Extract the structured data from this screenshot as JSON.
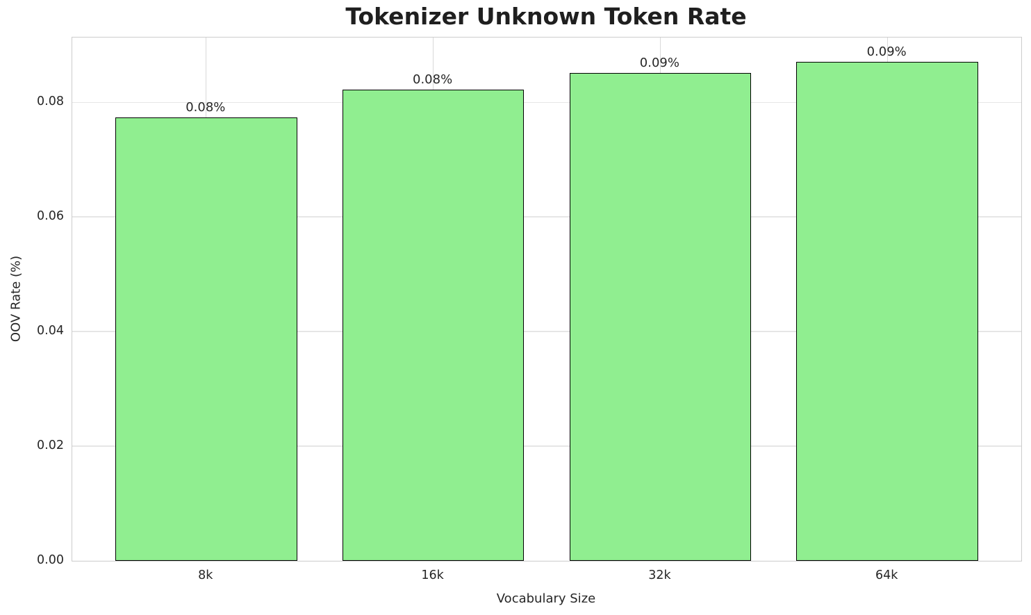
{
  "chart_data": {
    "type": "bar",
    "title": "Tokenizer Unknown Token Rate",
    "xlabel": "Vocabulary Size",
    "ylabel": "OOV Rate (%)",
    "categories": [
      "8k",
      "16k",
      "32k",
      "64k"
    ],
    "values": [
      0.0774,
      0.0822,
      0.0851,
      0.087
    ],
    "bar_labels": [
      "0.08%",
      "0.08%",
      "0.09%",
      "0.09%"
    ],
    "ytick_labels": [
      "0.00",
      "0.02",
      "0.04",
      "0.06",
      "0.08"
    ],
    "ylim": [
      0,
      0.0913
    ],
    "grid": true,
    "legend": false,
    "bar_color": "#90EE90",
    "bar_edge_color": "#000000"
  }
}
